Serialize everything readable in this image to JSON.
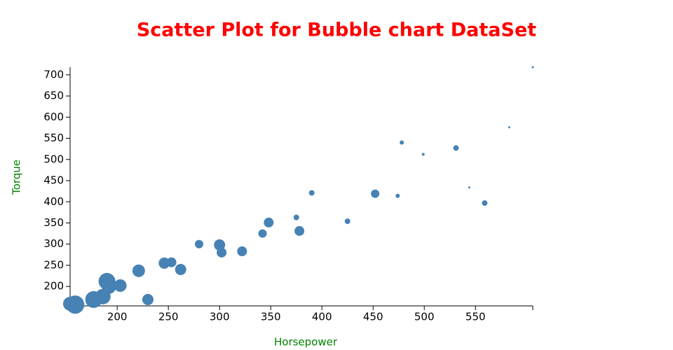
{
  "chart_data": {
    "type": "scatter",
    "title": "Scatter Plot for Bubble chart DataSet",
    "x_label": "Horsepower",
    "y_label": "Torque",
    "x": [
      154,
      159,
      177,
      186,
      190,
      192,
      203,
      221,
      230,
      246,
      253,
      262,
      280,
      300,
      302,
      322,
      342,
      348,
      375,
      378,
      390,
      425,
      452,
      474,
      478,
      499,
      531,
      544,
      559,
      583,
      606
    ],
    "y": [
      159,
      157,
      169,
      176,
      212,
      199,
      202,
      237,
      169,
      255,
      257,
      240,
      300,
      298,
      280,
      283,
      325,
      351,
      363,
      331,
      421,
      354,
      419,
      414,
      540,
      512,
      527,
      434,
      397,
      576,
      718
    ],
    "sizes": [
      10,
      13,
      12,
      11,
      12,
      10,
      9,
      9,
      8,
      8,
      7,
      8,
      6,
      8,
      7,
      7,
      6,
      7,
      4,
      7,
      4,
      4,
      6,
      3,
      3,
      2,
      4,
      1.5,
      4,
      1.5,
      1.5
    ],
    "color": "#4682b4",
    "xlim": [
      154,
      606
    ],
    "ylim": [
      154,
      718
    ],
    "xticks": [
      200,
      250,
      300,
      350,
      400,
      450,
      500,
      550
    ],
    "yticks": [
      200,
      250,
      300,
      350,
      400,
      450,
      500,
      550,
      600,
      650,
      700
    ],
    "title_color": "#ff0000",
    "axis_label_color": "#008000"
  }
}
